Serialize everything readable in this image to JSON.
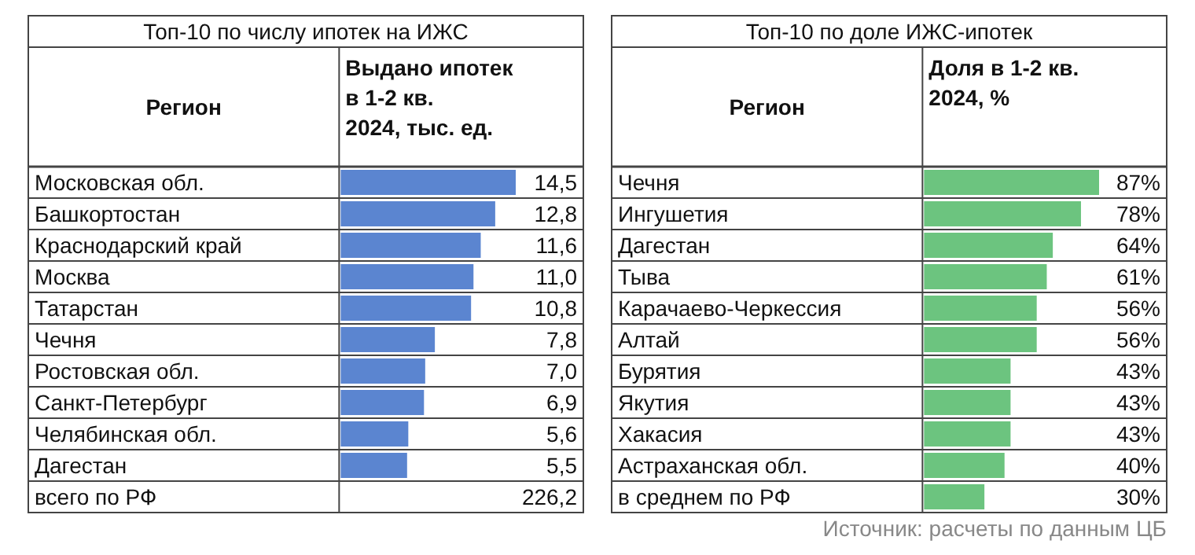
{
  "chart_data": [
    {
      "type": "bar",
      "orientation": "horizontal",
      "title": "Топ-10 по числу ипотек на ИЖС",
      "ylabel": "Регион",
      "xlabel": "Выдано ипотек в 1-2 кв. 2024, тыс. ед.",
      "grid": true,
      "categories": [
        "Московская обл.",
        "Башкортостан",
        "Краснодарский край",
        "Москва",
        "Татарстан",
        "Чечня",
        "Ростовская обл.",
        "Санкт-Петербург",
        "Челябинская обл.",
        "Дагестан"
      ],
      "values": [
        14.5,
        12.8,
        11.6,
        11.0,
        10.8,
        7.8,
        7.0,
        6.9,
        5.6,
        5.5
      ],
      "value_labels": [
        "14,5",
        "12,8",
        "11,6",
        "11,0",
        "10,8",
        "7,8",
        "7,0",
        "6,9",
        "5,6",
        "5,5"
      ],
      "color": "#5b85d0",
      "annotations": [
        "всего по РФ",
        "226,2"
      ]
    },
    {
      "type": "bar",
      "orientation": "horizontal",
      "title": "Топ-10 по доле ИЖС-ипотек",
      "ylabel": "Регион",
      "xlabel": "Доля в 1-2 кв. 2024, %",
      "grid": true,
      "categories": [
        "Чечня",
        "Ингушетия",
        "Дагестан",
        "Тыва",
        "Карачаево-Черкессия",
        "Алтай",
        "Бурятия",
        "Якутия",
        "Хакасия",
        "Астраханская обл.",
        "в среднем по РФ"
      ],
      "values": [
        87,
        78,
        64,
        61,
        56,
        56,
        43,
        43,
        43,
        40,
        30
      ],
      "value_labels": [
        "87%",
        "78%",
        "64%",
        "61%",
        "56%",
        "56%",
        "43%",
        "43%",
        "43%",
        "40%",
        "30%"
      ],
      "color": "#6cc47f",
      "annotations": [
        "Источник: расчеты по данным ЦБ"
      ]
    }
  ]
}
